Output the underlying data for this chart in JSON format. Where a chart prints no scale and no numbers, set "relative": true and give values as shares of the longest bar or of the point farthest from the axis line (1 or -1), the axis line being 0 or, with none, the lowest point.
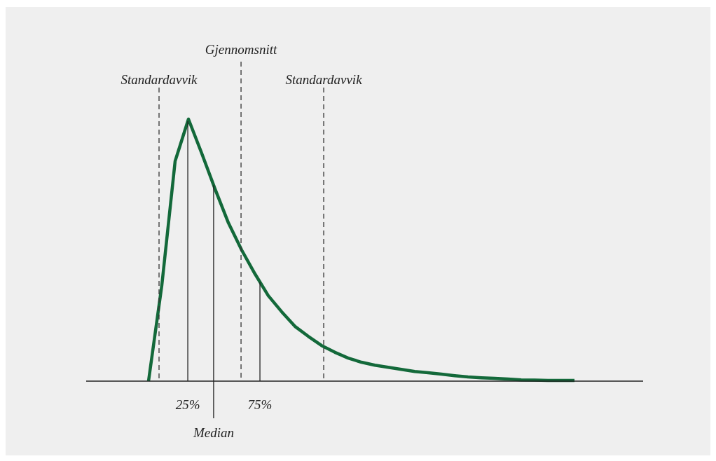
{
  "chart_data": {
    "type": "line",
    "relative": true,
    "marker": "none",
    "line_style": "solid",
    "categories": [
      null,
      null,
      null,
      null,
      null,
      null,
      null,
      null,
      null,
      null,
      null,
      null,
      null,
      null,
      null,
      null,
      null,
      null,
      null,
      null,
      null,
      null,
      null,
      null,
      null,
      null,
      null,
      null,
      null,
      null,
      null,
      null,
      null
    ],
    "series": [
      {
        "color": "#13693a",
        "values": [
          0,
          0.366,
          0.84,
          1,
          0.869,
          0.733,
          0.604,
          0.5,
          0.409,
          0.326,
          0.265,
          0.209,
          0.171,
          0.136,
          0.11,
          0.088,
          0.072,
          0.061,
          0.053,
          0.045,
          0.037,
          0.032,
          0.027,
          0.021,
          0.016,
          0.013,
          0.011,
          0.008,
          0.005,
          0.004,
          0.003,
          0.003,
          0.003
        ]
      }
    ],
    "annotations": [
      "Standardavvik",
      "25%",
      "Median",
      "Gjennomsnitt",
      "75%",
      "Standardavvik"
    ]
  }
}
